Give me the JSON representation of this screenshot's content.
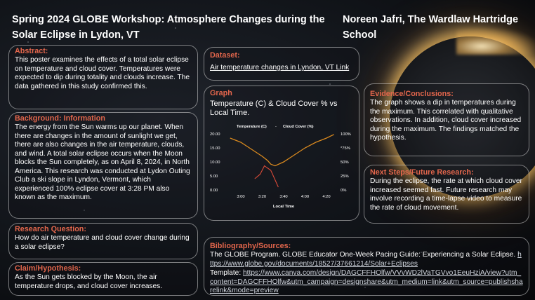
{
  "header": {
    "title": "Spring 2024 GLOBE Workshop: Atmosphere Changes during the Solar Eclipse in Lydon, VT",
    "author": "Noreen Jafri, The Wardlaw Hartridge School"
  },
  "abstract": {
    "heading": "Abstract:",
    "text": "This poster examines the effects of a total solar eclipse on temperature and cloud cover. Temperatures were expected to dip during totality and clouds increase.  The data gathered in this study confirmed this."
  },
  "background": {
    "heading": "Background: Information",
    "text": "The energy from the Sun warms up our planet. When there are changes in the amount of sunlight we get, there are also changes in the air temperature, clouds, and wind. A total solar eclipse occurs when the Moon blocks the Sun completely, as on April 8, 2024, in North America. This research was conducted at Lydon Outing Club a ski slope in Lyndon, Vermont, which experienced 100% eclipse cover at 3:28 PM also known as the maximum."
  },
  "research_question": {
    "heading": "Research Question:",
    "text": "How do air temperature and cloud cover change during a solar eclipse?"
  },
  "claim": {
    "heading": "Claim/Hypothesis:",
    "text": "As the Sun gets blocked by the Moon, the air temperature drops, and cloud cover increases."
  },
  "dataset": {
    "heading": "Dataset:",
    "link_text": "Air temperature changes in Lyndon, VT Link"
  },
  "graph": {
    "heading": "Graph",
    "subtitle": "Temperature (C) &  Cloud Cover % vs Local Time."
  },
  "evidence": {
    "heading": "Evidence/Conclusions:",
    "text": "The graph shows a dip in temperatures during the maximum.  This correlated with qualitative observations. In addition, cloud cover increased during the maximum. The findings matched the hypothesis."
  },
  "next_steps": {
    "heading": "Next Steps/Future Research:",
    "text": "During the eclipse, the rate at which cloud cover increased seemed fast. Future research may involve recording a time-lapse video to measure the rate of cloud movement."
  },
  "bibliography": {
    "heading": "Bibliography/Sources:",
    "entry1_text": "The GLOBE Program. GLOBE Educator One-Week Pacing Guide: Experiencing a Solar Eclipse.",
    "entry1_url": "https://www.globe.gov/documents/18527/37661214/Solar+Eclipses",
    "entry2_label": "Template:",
    "entry2_url": "https://www.canva.com/design/DAGCFFHOlfw/VVvWD2lVaTGVvo1EeuHziA/view?utm_content=DAGCFFHOlfw&utm_campaign=designshare&utm_medium=link&utm_source=publishsharelink&mode=preview"
  },
  "colors": {
    "heading": "#e3664c",
    "temperature_line": "#d9891e",
    "cloud_line": "#d94a38",
    "axis_text": "#ffffff"
  },
  "chart_data": {
    "type": "line",
    "title": "",
    "xlabel": "Local Time",
    "ylabel_left": "",
    "ylabel_right": "",
    "x_ticks": [
      "3:00",
      "3:20",
      "3:40",
      "4:00",
      "4:20"
    ],
    "x_range_minutes": [
      0,
      80
    ],
    "y_left_ticks": [
      "0.00",
      "5.00",
      "10.00",
      "15.00",
      "20.00"
    ],
    "y_left_range": [
      0,
      20
    ],
    "y_right_ticks": [
      "0%",
      "25%",
      "50%",
      "*75%",
      "100%"
    ],
    "y_right_range": [
      0,
      100
    ],
    "legend_position": "top",
    "legend_separator": "-",
    "series": [
      {
        "name": "Temperature (C)",
        "axis": "left",
        "x": [
          -10,
          0,
          10,
          20,
          25,
          28,
          32,
          40,
          50,
          60,
          70,
          80,
          87
        ],
        "values": [
          18.5,
          17.0,
          14.5,
          12.0,
          10.5,
          9.2,
          8.6,
          10.0,
          12.5,
          15.0,
          17.0,
          18.5,
          19.8
        ]
      },
      {
        "name": "Cloud Cover (%)",
        "axis": "right",
        "x": [
          13,
          18,
          22,
          28,
          32,
          35
        ],
        "values": [
          20,
          28,
          43,
          35,
          18,
          5
        ]
      }
    ]
  }
}
